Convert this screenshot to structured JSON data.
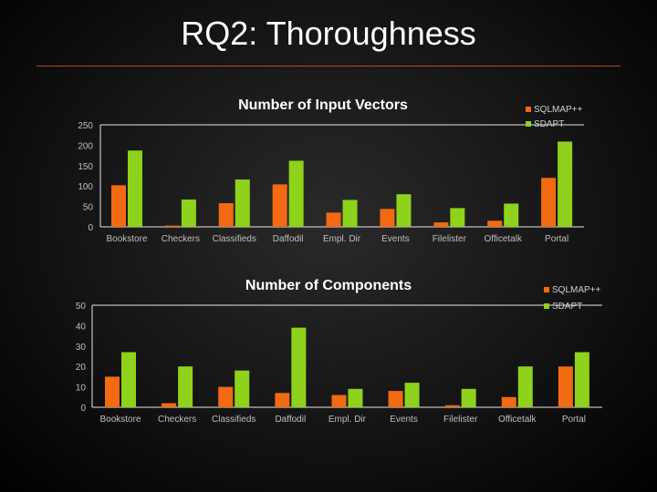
{
  "slide": {
    "title": "RQ2: Thoroughness"
  },
  "colors": {
    "sqlmap": "#f26a12",
    "sdapt": "#8ed21c",
    "axis": "#e6e6e6",
    "rule": "#b8471e"
  },
  "chart_data": [
    {
      "type": "bar",
      "title": "Number of Input Vectors",
      "categories": [
        "Bookstore",
        "Checkers",
        "Classifieds",
        "Daffodil",
        "Empl. Dir",
        "Events",
        "Filelister",
        "Officetalk",
        "Portal"
      ],
      "series": [
        {
          "name": "SQLMAP++",
          "values": [
            102,
            3,
            58,
            104,
            35,
            44,
            11,
            15,
            120
          ]
        },
        {
          "name": "SDAPT",
          "values": [
            187,
            67,
            116,
            162,
            66,
            80,
            46,
            57,
            209
          ]
        }
      ],
      "ylim": [
        0,
        250
      ],
      "yticks": [
        0,
        50,
        100,
        150,
        200,
        250
      ],
      "xlabel": "",
      "ylabel": "",
      "legend": "top-right"
    },
    {
      "type": "bar",
      "title": "Number of Components",
      "categories": [
        "Bookstore",
        "Checkers",
        "Classifieds",
        "Daffodil",
        "Empl. Dir",
        "Events",
        "Filelister",
        "Officetalk",
        "Portal"
      ],
      "series": [
        {
          "name": "SQLMAP++",
          "values": [
            15,
            2,
            10,
            7,
            6,
            8,
            1,
            5,
            20
          ]
        },
        {
          "name": "SDAPT",
          "values": [
            27,
            20,
            18,
            39,
            9,
            12,
            9,
            20,
            27
          ]
        }
      ],
      "ylim": [
        0,
        50
      ],
      "yticks": [
        0,
        10,
        20,
        30,
        40,
        50
      ],
      "xlabel": "",
      "ylabel": "",
      "legend": "top-right"
    }
  ]
}
